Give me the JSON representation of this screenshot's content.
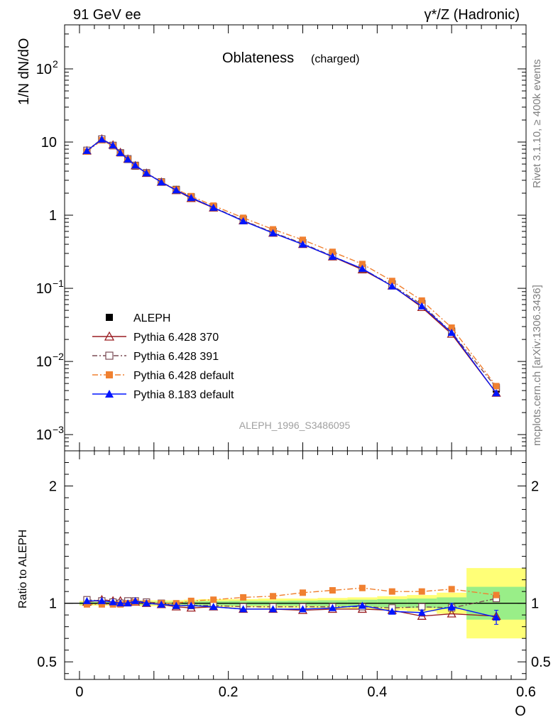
{
  "header": {
    "left": "91 GeV ee",
    "right": "γ*/Z (Hadronic)"
  },
  "side_labels": {
    "rivet": "Rivet 3.1.10, ≥ 400k events",
    "mcplots": "mcplots.cern.ch [arXiv:1306.3436]"
  },
  "chart_data": [
    {
      "type": "line",
      "title": "Oblateness",
      "subtitle": "(charged)",
      "analysis_id": "ALEPH_1996_S3486095",
      "ylabel": "1/N dN/dO",
      "yscale": "log",
      "ylim": [
        0.0006,
        400
      ],
      "xlim": [
        -0.02,
        0.6
      ],
      "yticks": [
        {
          "value": 0.001,
          "label": "10",
          "sup": "−3"
        },
        {
          "value": 0.01,
          "label": "10",
          "sup": "−2"
        },
        {
          "value": 0.1,
          "label": "10",
          "sup": "−1"
        },
        {
          "value": 1,
          "label": "1",
          "sup": ""
        },
        {
          "value": 10,
          "label": "10",
          "sup": ""
        },
        {
          "value": 100,
          "label": "10",
          "sup": "2"
        }
      ],
      "x": [
        0.01,
        0.03,
        0.045,
        0.055,
        0.065,
        0.075,
        0.09,
        0.11,
        0.13,
        0.15,
        0.18,
        0.22,
        0.26,
        0.3,
        0.34,
        0.38,
        0.42,
        0.46,
        0.5,
        0.56
      ],
      "legend": [
        "ALEPH",
        "Pythia 6.428 370",
        "Pythia 6.428 391",
        "Pythia 6.428 default",
        "Pythia 8.183 default"
      ],
      "series": [
        {
          "name": "ALEPH",
          "color": "#000000",
          "marker": "square-filled",
          "values": [
            7.5,
            10.7,
            8.9,
            7.1,
            5.8,
            4.7,
            3.75,
            2.85,
            2.25,
            1.78,
            1.3,
            0.88,
            0.6,
            0.42,
            0.285,
            0.19,
            0.115,
            0.062,
            0.026,
            0.0042
          ]
        },
        {
          "name": "Pythia 6.428 370",
          "color": "#9a1d22",
          "marker": "triangle-open",
          "dash": "",
          "values": [
            7.6,
            11.0,
            9.1,
            7.2,
            5.85,
            4.75,
            3.75,
            2.83,
            2.18,
            1.7,
            1.26,
            0.84,
            0.57,
            0.4,
            0.27,
            0.18,
            0.108,
            0.055,
            0.0237,
            0.0037
          ]
        },
        {
          "name": "Pythia 6.428 391",
          "color": "#7a4b55",
          "marker": "square-open",
          "dash": "7,3,2,3",
          "values": [
            7.7,
            11.0,
            9.0,
            7.1,
            5.9,
            4.8,
            3.8,
            2.85,
            2.2,
            1.75,
            1.28,
            0.85,
            0.58,
            0.41,
            0.275,
            0.185,
            0.11,
            0.06,
            0.025,
            0.0044
          ]
        },
        {
          "name": "Pythia 6.428 default",
          "color": "#f08030",
          "marker": "square-filled",
          "dash": "8,3,2,3",
          "values": [
            7.4,
            10.6,
            8.8,
            7.0,
            5.8,
            4.75,
            3.75,
            2.85,
            2.25,
            1.82,
            1.35,
            0.92,
            0.64,
            0.46,
            0.315,
            0.215,
            0.126,
            0.068,
            0.029,
            0.0046
          ]
        },
        {
          "name": "Pythia 8.183 default",
          "color": "#0015ff",
          "marker": "triangle-filled",
          "dash": "",
          "values": [
            7.6,
            10.9,
            9.0,
            7.1,
            5.8,
            4.8,
            3.75,
            2.82,
            2.2,
            1.73,
            1.27,
            0.83,
            0.57,
            0.4,
            0.272,
            0.186,
            0.107,
            0.057,
            0.0248,
            0.0037
          ]
        }
      ]
    },
    {
      "type": "line",
      "ylabel": "Ratio to ALEPH",
      "xlabel": "O",
      "ylim": [
        0.35,
        2.3
      ],
      "xlim": [
        -0.02,
        0.6
      ],
      "yticks": [
        0.5,
        1,
        2
      ],
      "xticks": [
        0,
        0.2,
        0.4,
        0.6
      ],
      "xtick_labels": [
        "0",
        "0.2",
        "0.4",
        "0.6"
      ],
      "bin_edges": [
        0,
        0.02,
        0.04,
        0.05,
        0.06,
        0.07,
        0.08,
        0.1,
        0.12,
        0.14,
        0.16,
        0.2,
        0.24,
        0.28,
        0.32,
        0.36,
        0.4,
        0.44,
        0.48,
        0.52,
        0.6
      ],
      "band_total": [
        0.02,
        0.02,
        0.02,
        0.02,
        0.02,
        0.02,
        0.025,
        0.025,
        0.025,
        0.03,
        0.035,
        0.035,
        0.04,
        0.04,
        0.045,
        0.05,
        0.06,
        0.07,
        0.09,
        0.3
      ],
      "band_stat": [
        0.01,
        0.01,
        0.01,
        0.01,
        0.01,
        0.01,
        0.012,
        0.012,
        0.012,
        0.015,
        0.018,
        0.02,
        0.02,
        0.022,
        0.025,
        0.03,
        0.035,
        0.04,
        0.05,
        0.14
      ],
      "x": [
        0.01,
        0.03,
        0.045,
        0.055,
        0.065,
        0.075,
        0.09,
        0.11,
        0.13,
        0.15,
        0.18,
        0.22,
        0.26,
        0.3,
        0.34,
        0.38,
        0.42,
        0.46,
        0.5,
        0.56
      ],
      "series": [
        {
          "name": "Pythia 6.428 370",
          "color": "#9a1d22",
          "marker": "triangle-open",
          "dash": "",
          "values": [
            1.01,
            1.03,
            1.02,
            1.02,
            1.01,
            1.01,
            1.0,
            0.99,
            0.97,
            0.96,
            0.97,
            0.95,
            0.95,
            0.94,
            0.95,
            0.95,
            0.94,
            0.89,
            0.91,
            0.89
          ]
        },
        {
          "name": "Pythia 6.428 391",
          "color": "#7a4b55",
          "marker": "square-open",
          "dash": "7,3,2,3",
          "values": [
            1.03,
            1.02,
            1.01,
            1.0,
            1.02,
            1.02,
            1.01,
            1.0,
            0.98,
            0.98,
            0.98,
            0.97,
            0.97,
            0.97,
            0.97,
            0.97,
            0.96,
            0.97,
            0.96,
            1.04
          ]
        },
        {
          "name": "Pythia 6.428 default",
          "color": "#f08030",
          "marker": "square-filled",
          "dash": "8,3,2,3",
          "values": [
            0.99,
            0.99,
            0.99,
            0.99,
            1.0,
            1.01,
            1.0,
            1.0,
            1.0,
            1.02,
            1.03,
            1.05,
            1.06,
            1.09,
            1.11,
            1.13,
            1.1,
            1.1,
            1.12,
            1.07
          ]
        },
        {
          "name": "Pythia 8.183 default",
          "color": "#0015ff",
          "marker": "triangle-filled",
          "dash": "",
          "values": [
            1.02,
            1.02,
            1.01,
            1.0,
            1.0,
            1.02,
            1.0,
            0.99,
            0.98,
            0.98,
            0.97,
            0.95,
            0.95,
            0.95,
            0.96,
            0.98,
            0.93,
            0.92,
            0.97,
            0.88
          ],
          "errors": [
            0,
            0,
            0,
            0,
            0,
            0,
            0,
            0,
            0,
            0,
            0,
            0,
            0,
            0,
            0,
            0,
            0,
            0.02,
            0.03,
            0.06
          ]
        }
      ]
    }
  ]
}
